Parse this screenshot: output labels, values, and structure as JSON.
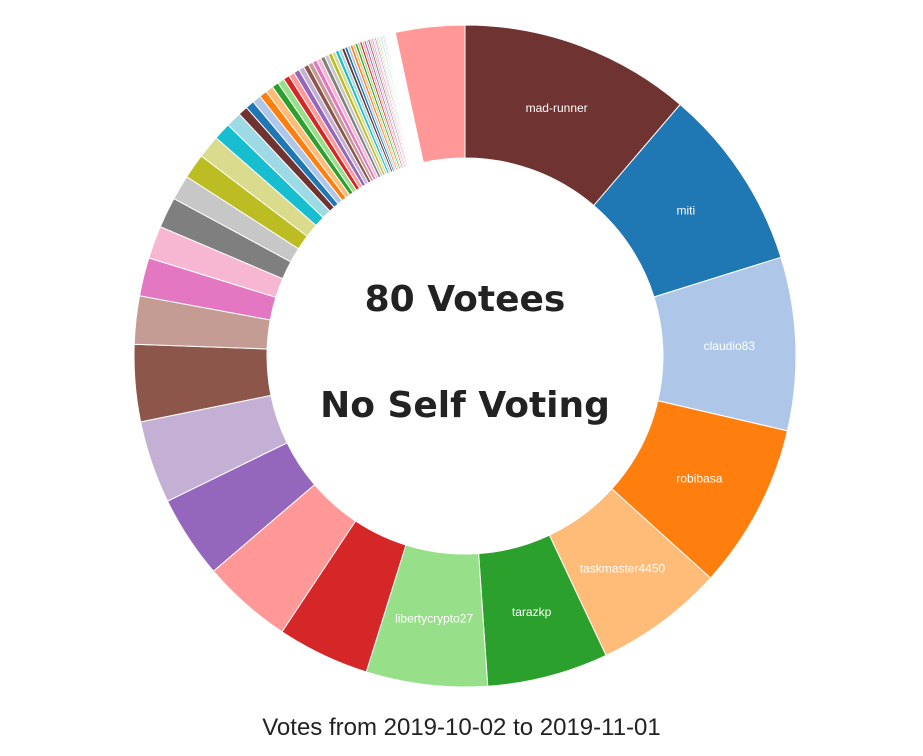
{
  "chart_data": {
    "type": "pie",
    "variant": "donut",
    "center_text": [
      "80 Votees",
      "No Self Voting"
    ],
    "caption": "Votes from 2019-10-02 to 2019-11-01",
    "slices": [
      {
        "label": "mad-runner",
        "value": 12.0,
        "color": "#6f3432"
      },
      {
        "label": "miti",
        "value": 9.5,
        "color": "#1f77b4"
      },
      {
        "label": "claudio83",
        "value": 9.0,
        "color": "#aec7e8"
      },
      {
        "label": "robibasa",
        "value": 8.6,
        "color": "#ff7f0e"
      },
      {
        "label": "taskmaster4450",
        "value": 6.7,
        "color": "#ffbb78"
      },
      {
        "label": "tarazkp",
        "value": 6.3,
        "color": "#2ca02c"
      },
      {
        "label": "libertycrypto27",
        "value": 6.3,
        "color": "#98df8a"
      },
      {
        "label": "",
        "value": 4.8,
        "color": "#d62728"
      },
      {
        "label": "",
        "value": 4.7,
        "color": "#ff9896"
      },
      {
        "label": "",
        "value": 4.3,
        "color": "#9467bd"
      },
      {
        "label": "",
        "value": 4.3,
        "color": "#c5b0d5"
      },
      {
        "label": "",
        "value": 4.0,
        "color": "#8c564b"
      },
      {
        "label": "",
        "value": 2.5,
        "color": "#c49c94"
      },
      {
        "label": "",
        "value": 2.0,
        "color": "#e377c2"
      },
      {
        "label": "",
        "value": 1.7,
        "color": "#f7b6d2"
      },
      {
        "label": "",
        "value": 1.6,
        "color": "#7f7f7f"
      },
      {
        "label": "",
        "value": 1.3,
        "color": "#c7c7c7"
      },
      {
        "label": "",
        "value": 1.3,
        "color": "#bcbd22"
      },
      {
        "label": "",
        "value": 1.2,
        "color": "#dbdb8d"
      },
      {
        "label": "",
        "value": 0.9,
        "color": "#17becf"
      },
      {
        "label": "",
        "value": 0.8,
        "color": "#9edae5"
      },
      {
        "label": "",
        "value": 0.5,
        "color": "#6f3432"
      },
      {
        "label": "",
        "value": 0.45,
        "color": "#1f77b4"
      },
      {
        "label": "",
        "value": 0.45,
        "color": "#aec7e8"
      },
      {
        "label": "",
        "value": 0.4,
        "color": "#ff7f0e"
      },
      {
        "label": "",
        "value": 0.4,
        "color": "#ffbb78"
      },
      {
        "label": "",
        "value": 0.35,
        "color": "#2ca02c"
      },
      {
        "label": "",
        "value": 0.35,
        "color": "#98df8a"
      },
      {
        "label": "",
        "value": 0.32,
        "color": "#d62728"
      },
      {
        "label": "",
        "value": 0.3,
        "color": "#ff9896"
      },
      {
        "label": "",
        "value": 0.3,
        "color": "#9467bd"
      },
      {
        "label": "",
        "value": 0.28,
        "color": "#c5b0d5"
      },
      {
        "label": "",
        "value": 0.26,
        "color": "#8c564b"
      },
      {
        "label": "",
        "value": 0.25,
        "color": "#c49c94"
      },
      {
        "label": "",
        "value": 0.24,
        "color": "#e377c2"
      },
      {
        "label": "",
        "value": 0.23,
        "color": "#f7b6d2"
      },
      {
        "label": "",
        "value": 0.22,
        "color": "#7f7f7f"
      },
      {
        "label": "",
        "value": 0.21,
        "color": "#c7c7c7"
      },
      {
        "label": "",
        "value": 0.2,
        "color": "#bcbd22"
      },
      {
        "label": "",
        "value": 0.19,
        "color": "#dbdb8d"
      },
      {
        "label": "",
        "value": 0.18,
        "color": "#17becf"
      },
      {
        "label": "",
        "value": 0.17,
        "color": "#9edae5"
      },
      {
        "label": "",
        "value": 0.16,
        "color": "#6f3432"
      },
      {
        "label": "",
        "value": 0.15,
        "color": "#1f77b4"
      },
      {
        "label": "",
        "value": 0.15,
        "color": "#aec7e8"
      },
      {
        "label": "",
        "value": 0.14,
        "color": "#ff7f0e"
      },
      {
        "label": "",
        "value": 0.13,
        "color": "#ffbb78"
      },
      {
        "label": "",
        "value": 0.13,
        "color": "#2ca02c"
      },
      {
        "label": "",
        "value": 0.12,
        "color": "#98df8a"
      },
      {
        "label": "",
        "value": 0.12,
        "color": "#d62728"
      },
      {
        "label": "",
        "value": 0.11,
        "color": "#ff9896"
      },
      {
        "label": "",
        "value": 0.11,
        "color": "#9467bd"
      },
      {
        "label": "",
        "value": 0.1,
        "color": "#c5b0d5"
      },
      {
        "label": "",
        "value": 0.1,
        "color": "#8c564b"
      },
      {
        "label": "",
        "value": 0.09,
        "color": "#c49c94"
      },
      {
        "label": "",
        "value": 0.09,
        "color": "#e377c2"
      },
      {
        "label": "",
        "value": 0.08,
        "color": "#f7b6d2"
      },
      {
        "label": "",
        "value": 0.08,
        "color": "#7f7f7f"
      },
      {
        "label": "",
        "value": 0.08,
        "color": "#c7c7c7"
      },
      {
        "label": "",
        "value": 0.07,
        "color": "#bcbd22"
      },
      {
        "label": "",
        "value": 0.07,
        "color": "#dbdb8d"
      },
      {
        "label": "",
        "value": 0.07,
        "color": "#17becf"
      },
      {
        "label": "",
        "value": 0.06,
        "color": "#9edae5"
      },
      {
        "label": "",
        "value": 0.06,
        "color": "#6f3432"
      },
      {
        "label": "",
        "value": 0.06,
        "color": "#1f77b4"
      },
      {
        "label": "",
        "value": 0.05,
        "color": "#aec7e8"
      },
      {
        "label": "",
        "value": 0.05,
        "color": "#ff7f0e"
      },
      {
        "label": "",
        "value": 0.05,
        "color": "#ffbb78"
      },
      {
        "label": "",
        "value": 0.05,
        "color": "#2ca02c"
      },
      {
        "label": "",
        "value": 0.04,
        "color": "#98df8a"
      },
      {
        "label": "",
        "value": 0.04,
        "color": "#d62728"
      },
      {
        "label": "",
        "value": 0.04,
        "color": "#ff9896"
      },
      {
        "label": "",
        "value": 0.04,
        "color": "#9467bd"
      },
      {
        "label": "",
        "value": 0.04,
        "color": "#c5b0d5"
      },
      {
        "label": "",
        "value": 0.03,
        "color": "#8c564b"
      },
      {
        "label": "",
        "value": 0.03,
        "color": "#c49c94"
      },
      {
        "label": "",
        "value": 0.03,
        "color": "#e377c2"
      },
      {
        "label": "",
        "value": 0.03,
        "color": "#f7b6d2"
      },
      {
        "label": "",
        "value": 0.03,
        "color": "#7f7f7f"
      },
      {
        "label": "",
        "value": 3.6,
        "color": "#ff9896"
      }
    ]
  }
}
